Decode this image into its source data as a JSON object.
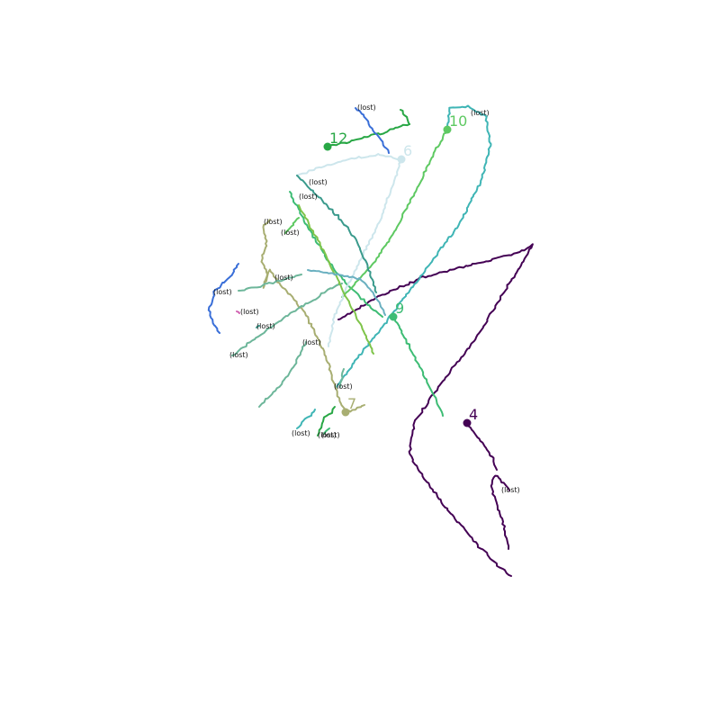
{
  "chart_data": {
    "type": "line",
    "title": "",
    "xlabel": "",
    "ylabel": "",
    "xlim": [
      0,
      800
    ],
    "ylim": [
      800,
      0
    ],
    "grid": false,
    "lost_text": "(lost)",
    "series": [
      {
        "label": "4",
        "color": "#440154",
        "x": [
          376,
          420,
          470,
          520,
          548,
          575,
          592,
          575,
          560,
          545,
          530,
          510,
          480,
          460,
          455,
          470,
          500,
          530,
          555,
          568
        ],
        "y": [
          355,
          330,
          308,
          295,
          288,
          282,
          272,
          300,
          325,
          350,
          375,
          400,
          440,
          470,
          505,
          530,
          570,
          605,
          630,
          640
        ],
        "end": [
          519,
          470
        ],
        "end_label": true
      },
      {
        "label": "",
        "color": "#440154",
        "x": [
          519,
          530,
          540,
          548,
          552
        ],
        "y": [
          470,
          485,
          498,
          510,
          522
        ],
        "end": [
          566,
          545
        ],
        "lost": true
      },
      {
        "label": "",
        "color": "#440154",
        "x": [
          566,
          558,
          550,
          545,
          552,
          560,
          565
        ],
        "y": [
          545,
          535,
          528,
          540,
          560,
          585,
          610
        ],
        "end": null
      },
      {
        "label": "9",
        "color": "#3dbc74",
        "x": [
          322,
          335,
          350,
          365,
          380,
          395,
          410,
          425
        ],
        "y": [
          213,
          240,
          265,
          290,
          310,
          325,
          340,
          352
        ],
        "end": [
          437,
          352
        ],
        "end_label": true
      },
      {
        "label": "",
        "color": "#3dbc74",
        "x": [
          437,
          450,
          462,
          475,
          485,
          492
        ],
        "y": [
          352,
          375,
          400,
          425,
          445,
          462
        ],
        "end": null
      },
      {
        "label": "10",
        "color": "#5ec962",
        "x": [
          380,
          400,
          420,
          440,
          455,
          470,
          485,
          497
        ],
        "y": [
          330,
          310,
          285,
          255,
          225,
          195,
          165,
          144
        ],
        "end": [
          497,
          144
        ],
        "end_label": true
      },
      {
        "label": "",
        "color": "#3fb5b5",
        "x": [
          374,
          395,
          420,
          450,
          480,
          510,
          535,
          545,
          540,
          520,
          500,
          497
        ],
        "y": [
          430,
          400,
          370,
          330,
          290,
          250,
          200,
          160,
          130,
          118,
          120,
          144
        ],
        "end": [
          532,
          126
        ],
        "lost": true
      },
      {
        "label": "6",
        "color": "#cde6ec",
        "x": [
          330,
          360,
          390,
          420,
          446
        ],
        "y": [
          195,
          185,
          176,
          172,
          177
        ],
        "end": [
          446,
          177
        ],
        "end_label": true
      },
      {
        "label": "",
        "color": "#cde6ec",
        "x": [
          446,
          435,
          420,
          400,
          385,
          372,
          365
        ],
        "y": [
          177,
          210,
          250,
          290,
          320,
          350,
          385
        ],
        "end": null
      },
      {
        "label": "12",
        "color": "#28a745",
        "x": [
          364,
          385,
          405,
          425,
          440,
          455
        ],
        "y": [
          163,
          158,
          152,
          148,
          142,
          138
        ],
        "end": [
          364,
          163
        ],
        "end_label": true
      },
      {
        "label": "",
        "color": "#28a745",
        "x": [
          455,
          450,
          445
        ],
        "y": [
          138,
          128,
          122
        ],
        "end": null
      },
      {
        "label": "",
        "color": "#3a6fd8",
        "x": [
          395,
          405,
          415,
          425,
          432
        ],
        "y": [
          120,
          130,
          145,
          158,
          170
        ],
        "end": [
          406,
          120
        ],
        "lost": true
      },
      {
        "label": "",
        "color": "#3a6fd8",
        "x": [
          265,
          258,
          248,
          238,
          232,
          236,
          244
        ],
        "y": [
          293,
          305,
          315,
          325,
          345,
          358,
          370
        ],
        "end": [
          246,
          325
        ],
        "lost": true
      },
      {
        "label": "7",
        "color": "#a8ae72",
        "x": [
          293,
          296,
          290,
          298,
          292,
          300,
          310,
          325,
          340,
          355,
          365,
          372,
          378,
          384
        ],
        "y": [
          250,
          270,
          290,
          305,
          320,
          300,
          315,
          330,
          350,
          380,
          405,
          430,
          445,
          458
        ],
        "end": [
          384,
          458
        ],
        "end_label": true
      },
      {
        "label": "",
        "color": "#a8ae72",
        "x": [
          384,
          395,
          405
        ],
        "y": [
          458,
          455,
          450
        ],
        "end": null
      },
      {
        "label": "",
        "color": "#6db69a",
        "x": [
          258,
          275,
          295,
          320,
          345,
          365,
          380
        ],
        "y": [
          395,
          382,
          368,
          350,
          335,
          322,
          315
        ],
        "end": [
          264,
          395
        ],
        "lost": true
      },
      {
        "label": "",
        "color": "#6db69a",
        "x": [
          265,
          280,
          300,
          318,
          335
        ],
        "y": [
          323,
          320,
          315,
          310,
          305
        ],
        "end": [
          314,
          309
        ],
        "lost": true
      },
      {
        "label": "",
        "color": "#6db69a",
        "x": [
          288,
          300,
          315,
          330,
          340
        ],
        "y": [
          452,
          440,
          425,
          400,
          380
        ],
        "end": [
          345,
          381
        ],
        "lost": true
      },
      {
        "label": "",
        "color": "#7fc44a",
        "x": [
          332,
          345,
          360,
          375,
          390,
          403,
          415
        ],
        "y": [
          228,
          252,
          280,
          310,
          340,
          365,
          393
        ],
        "end": [
          341,
          219
        ],
        "lost": true
      },
      {
        "label": "",
        "color": "#3a9a8c",
        "x": [
          330,
          345,
          360,
          375,
          390,
          400,
          410,
          418
        ],
        "y": [
          195,
          210,
          225,
          240,
          258,
          275,
          300,
          325
        ],
        "end": [
          352,
          203
        ],
        "lost": true
      },
      {
        "label": "",
        "color": "#6ab0c0",
        "x": [
          342,
          360,
          380,
          400,
          415,
          428
        ],
        "y": [
          300,
          302,
          306,
          310,
          325,
          350
        ],
        "end": null
      },
      {
        "label": "",
        "color": "#3fb5b5",
        "x": [
          330,
          337,
          345,
          350
        ],
        "y": [
          476,
          468,
          462,
          455
        ],
        "end": [
          333,
          482
        ],
        "lost": true
      },
      {
        "label": "",
        "color": "#28a745",
        "x": [
          353,
          358,
          362,
          368,
          372
        ],
        "y": [
          484,
          472,
          462,
          458,
          452
        ],
        "end": [
          362,
          484
        ],
        "lost": true
      },
      {
        "label": "",
        "color": "#3dbc74",
        "x": [
          360,
          366
        ],
        "y": [
          482,
          476
        ],
        "end": [
          366,
          484
        ],
        "lost": true
      },
      {
        "label": "",
        "color": "#6db69a",
        "x": [
          378,
          380,
          382
        ],
        "y": [
          430,
          420,
          410
        ],
        "end": [
          380,
          430
        ],
        "lost": true
      },
      {
        "label": "",
        "color": "#5ec962",
        "x": [
          317,
          325,
          332
        ],
        "y": [
          259,
          250,
          242
        ],
        "end": [
          321,
          259
        ],
        "lost": true
      },
      {
        "label": "",
        "color": "#a8ae72",
        "x": [
          293,
          300
        ],
        "y": [
          250,
          244
        ],
        "end": [
          302,
          247
        ],
        "lost": true
      },
      {
        "label": "",
        "color": "#d060b0",
        "x": [
          263,
          266
        ],
        "y": [
          346,
          348
        ],
        "end": [
          276,
          347
        ],
        "lost": true
      },
      {
        "label": "",
        "color": "#3a9a8c",
        "x": [
          285,
          288
        ],
        "y": [
          364,
          362
        ],
        "end": [
          294,
          363
        ],
        "lost": true
      }
    ]
  }
}
